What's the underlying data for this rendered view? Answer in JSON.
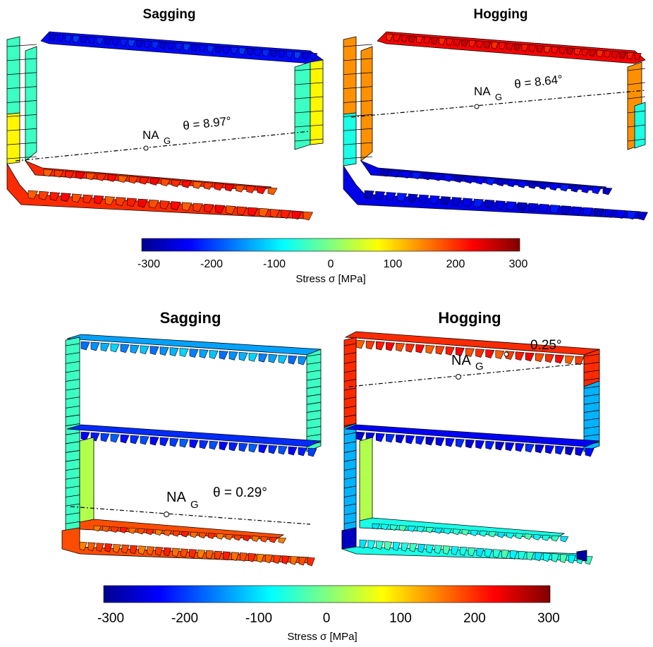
{
  "colormap": [
    "#00008f",
    "#0000ff",
    "#0080ff",
    "#00ffff",
    "#80ff80",
    "#ffff00",
    "#ff8000",
    "#ff0000",
    "#800000"
  ],
  "figure_top": {
    "panel_left_title": "Sagging",
    "panel_right_title": "Hogging",
    "sagging_na_label": "NA",
    "sagging_na_sub": "G",
    "sagging_theta": "θ = 8.97°",
    "hogging_na_label": "NA",
    "hogging_na_sub": "G",
    "hogging_theta": "θ = 8.64°",
    "colorbar": {
      "ticks": [
        "-300",
        "-200",
        "-100",
        "0",
        "100",
        "200",
        "300"
      ],
      "label": "Stress σ [MPa]",
      "range": [
        -300,
        300
      ]
    }
  },
  "figure_bottom": {
    "panel_left_title": "Sagging",
    "panel_right_title": "Hogging",
    "sagging_na_label": "NA",
    "sagging_na_sub": "G",
    "sagging_theta": "θ = 0.29°",
    "hogging_na_label": "NA",
    "hogging_na_sub": "G",
    "hogging_theta": "0.25°",
    "colorbar": {
      "ticks": [
        "-300",
        "-200",
        "-100",
        "0",
        "100",
        "200",
        "300"
      ],
      "label": "Stress σ [MPa]",
      "range": [
        -300,
        300
      ]
    }
  },
  "stress_levels": {
    "top_sagging": {
      "deck": -220,
      "side_upper": -40,
      "side_lower": 80,
      "bottom": 200
    },
    "top_hogging": {
      "deck": 230,
      "side_upper": 140,
      "side_lower": -60,
      "bottom": -240
    },
    "bottom_sagging": {
      "deck": -130,
      "inner_bottom": -200,
      "side": -40,
      "bottom": 180,
      "girder": 30
    },
    "bottom_hogging": {
      "deck": 200,
      "inner_bottom": -230,
      "side": -120,
      "bottom": -60,
      "girder": 30
    }
  }
}
